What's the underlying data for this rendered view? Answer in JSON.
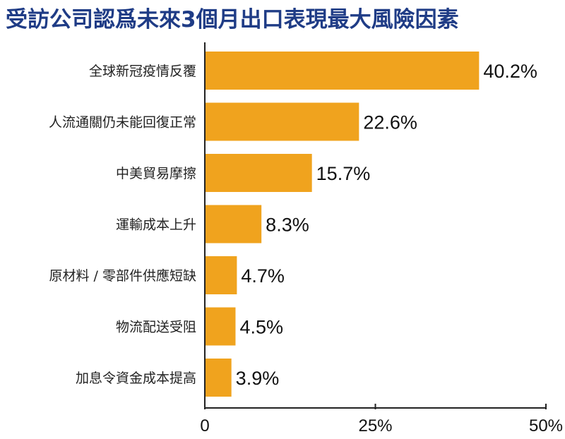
{
  "title": "受訪公司認爲未來3個月出口表現最大風險因素",
  "colors": {
    "bar": "#f0a31e",
    "axis": "#222222",
    "title": "#1f3c86"
  },
  "chart_data": {
    "type": "bar",
    "orientation": "horizontal",
    "title": "受訪公司認爲未來3個月出口表現最大風險因素",
    "categories": [
      "全球新冠疫情反覆",
      "人流通關仍未能回復正常",
      "中美貿易摩擦",
      "運輸成本上升",
      "原材料 / 零部件供應短缺",
      "物流配送受阻",
      "加息令資金成本提高"
    ],
    "values": [
      40.2,
      22.6,
      15.7,
      8.3,
      4.7,
      4.5,
      3.9
    ],
    "value_labels": [
      "40.2%",
      "22.6%",
      "15.7%",
      "8.3%",
      "4.7%",
      "4.5%",
      "3.9%"
    ],
    "xlim": [
      0,
      50
    ],
    "xticks": [
      0,
      25,
      50
    ],
    "xtick_labels": [
      "0",
      "25%",
      "50%"
    ],
    "xlabel": "",
    "ylabel": "",
    "grid": false,
    "legend": "none"
  }
}
